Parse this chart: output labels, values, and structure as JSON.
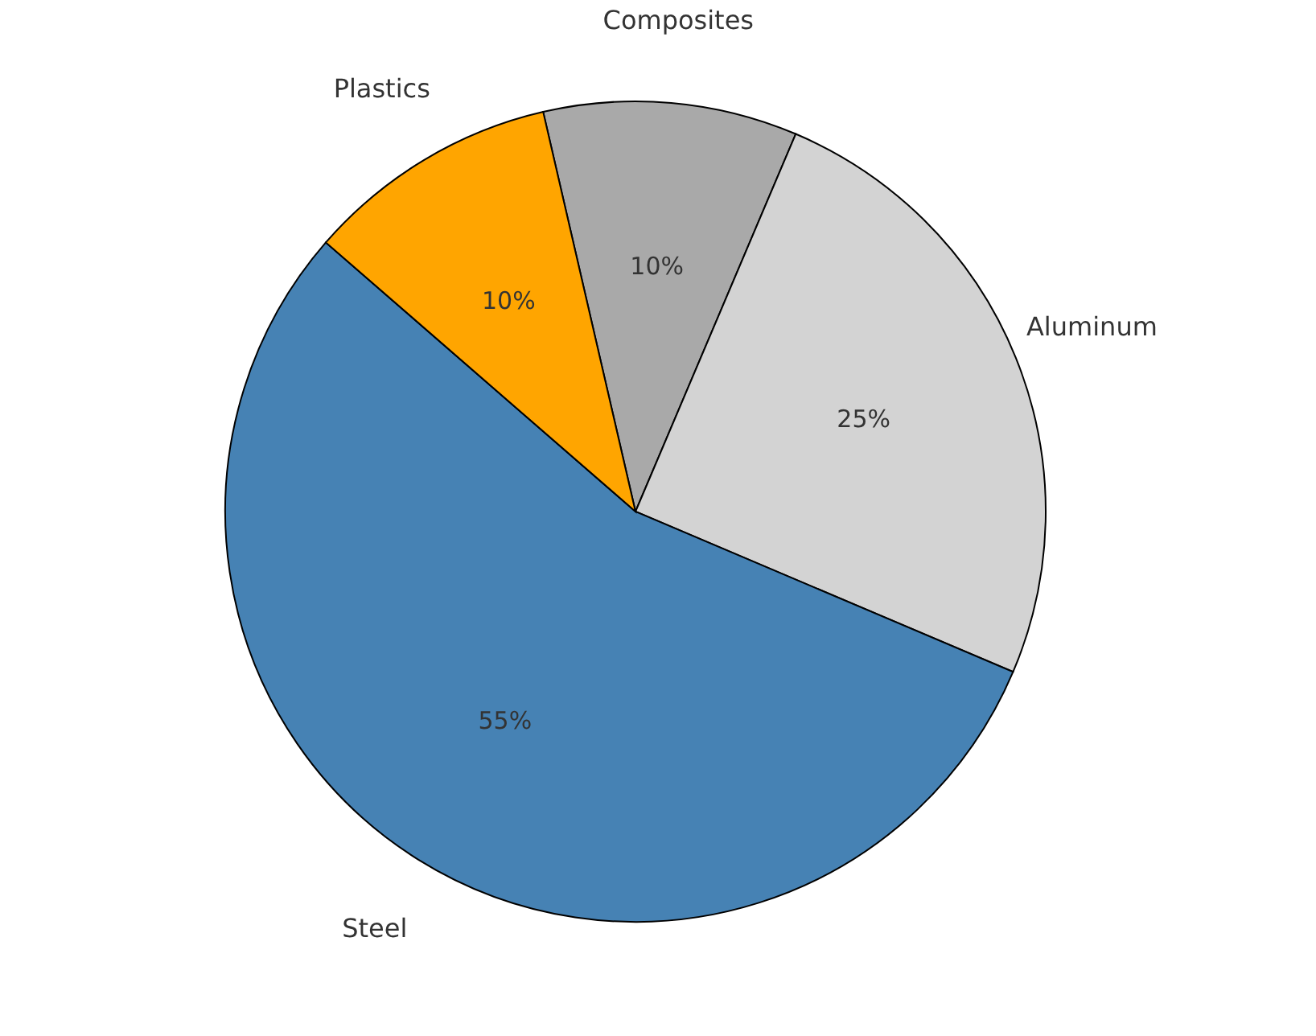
{
  "chart_data": {
    "type": "pie",
    "categories": [
      "Composites",
      "Aluminum",
      "Steel",
      "Plastics"
    ],
    "values": [
      10,
      25,
      55,
      10
    ],
    "colors": [
      "#a9a9a9",
      "#d3d3d3",
      "#4682b4",
      "#ffa500"
    ],
    "value_labels": [
      "10%",
      "25%",
      "55%",
      "10%"
    ],
    "legend": false
  }
}
